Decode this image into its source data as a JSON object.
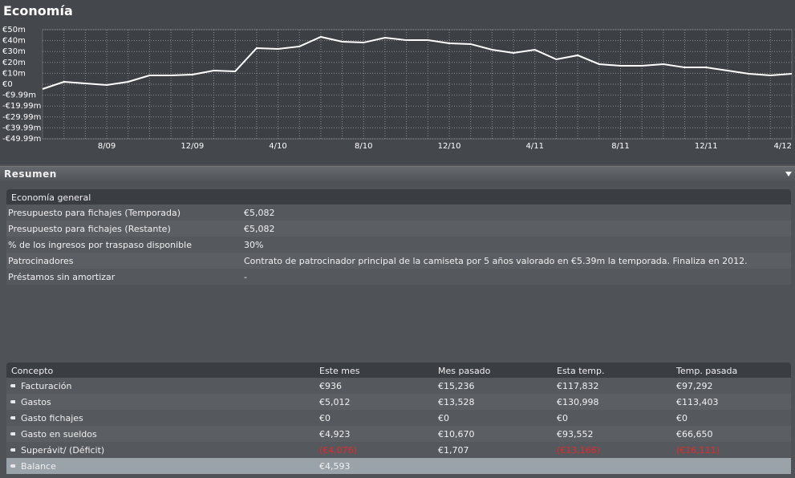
{
  "header": {
    "title": "Economía"
  },
  "chart_data": {
    "type": "line",
    "categories": [
      null,
      null,
      null,
      "8/09",
      null,
      null,
      null,
      "12/09",
      null,
      null,
      null,
      "4/10",
      null,
      null,
      null,
      "8/10",
      null,
      null,
      null,
      "12/10",
      null,
      null,
      null,
      "4/11",
      null,
      null,
      null,
      "8/11",
      null,
      null,
      null,
      "12/11",
      null,
      null,
      null,
      "4/12"
    ],
    "values": [
      -4.4,
      2.2,
      0.7,
      -0.7,
      2.2,
      8.1,
      8.1,
      8.8,
      12.5,
      11.8,
      33.1,
      32.4,
      34.6,
      43.4,
      39,
      38.2,
      42.6,
      40.4,
      40.4,
      37.5,
      36.8,
      31.6,
      28.7,
      31.6,
      22.8,
      26.5,
      18.4,
      16.9,
      16.9,
      18.4,
      15.4,
      15.4,
      12.5,
      9.6,
      8.1,
      9.6
    ],
    "color": "#ffffff",
    "ylim": [
      -49.99,
      50
    ],
    "yticks": [
      {
        "value": 50,
        "label": "€50m"
      },
      {
        "value": 40,
        "label": "€40m"
      },
      {
        "value": 30,
        "label": "€30m"
      },
      {
        "value": 20,
        "label": "€20m"
      },
      {
        "value": 10,
        "label": "€10m"
      },
      {
        "value": 0,
        "label": "€0"
      },
      {
        "value": -9.99,
        "label": "-€9.99m"
      },
      {
        "value": -19.99,
        "label": "-€19.99m"
      },
      {
        "value": -29.99,
        "label": "-€29.99m"
      },
      {
        "value": -39.99,
        "label": "-€39.99m"
      },
      {
        "value": -49.99,
        "label": "-€49.99m"
      }
    ],
    "grid": true
  },
  "summary": {
    "title": "Resumen",
    "general": {
      "title": "Economía general",
      "rows": [
        [
          "Presupuesto para fichajes (Temporada)",
          "€5,082"
        ],
        [
          "Presupuesto para fichajes (Restante)",
          "€5,082"
        ],
        [
          "% de los ingresos por traspaso disponible",
          "30%"
        ],
        [
          "Patrocinadores",
          "Contrato de patrocinador principal de la camiseta por 5 años valorado en €5.39m la temporada. Finaliza en 2012."
        ],
        [
          "Préstamos sin amortizar",
          "-"
        ]
      ]
    },
    "finance": {
      "header": [
        "Concepto",
        "Este mes",
        "Mes pasado",
        "Esta temp.",
        "Temp. pasada"
      ],
      "rows": [
        [
          "Facturación",
          "€936",
          "€15,236",
          "€117,832",
          "€97,292"
        ],
        [
          "Gastos",
          "€5,012",
          "€13,528",
          "€130,998",
          "€113,403"
        ],
        [
          "Gasto fichajes",
          "€0",
          "€0",
          "€0",
          "€0"
        ],
        [
          "Gasto en sueldos",
          "€4,923",
          "€10,670",
          "€93,552",
          "€66,650"
        ],
        [
          "Superávit/ (Déficit)",
          "(€4,076)",
          "€1,707",
          "(€13,166)",
          "(€16,111)"
        ],
        [
          "Balance",
          "€4,593"
        ]
      ]
    }
  }
}
